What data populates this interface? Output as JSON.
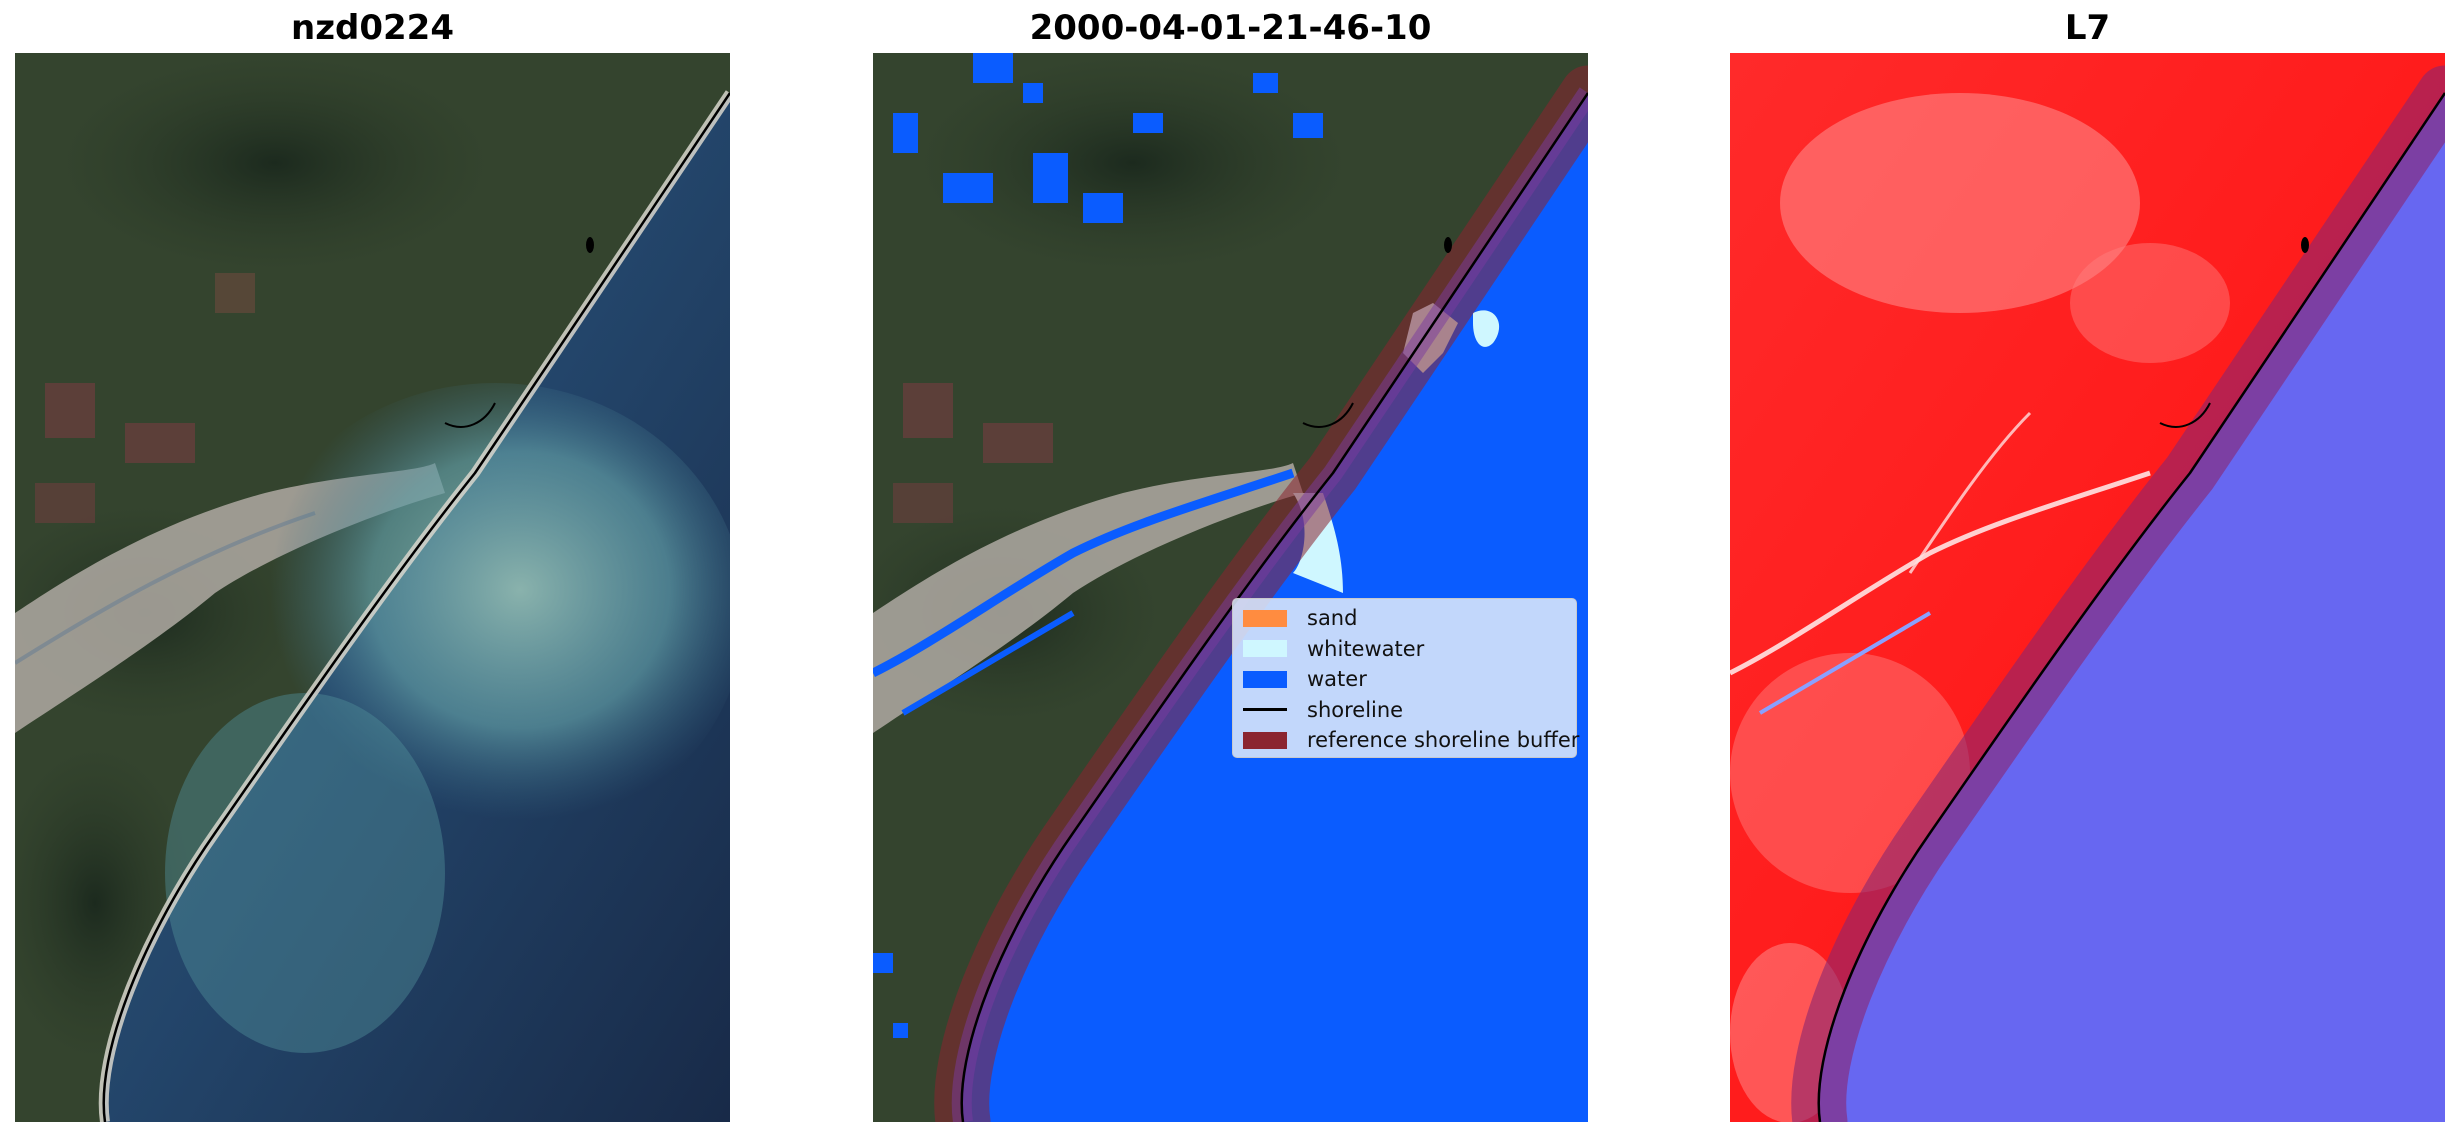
{
  "panels": [
    {
      "title": "nzd0224",
      "kind": "rgb-composite"
    },
    {
      "title": "2000-04-01-21-46-10",
      "kind": "classification"
    },
    {
      "title": "L7",
      "kind": "water-index"
    }
  ],
  "legend": {
    "placement": "center-right of middle panel",
    "items": [
      {
        "label": "sand",
        "color": "#ff8c40",
        "type": "patch"
      },
      {
        "label": "whitewater",
        "color": "#cff7ff",
        "type": "patch"
      },
      {
        "label": "water",
        "color": "#0a5cff",
        "type": "patch"
      },
      {
        "label": "shoreline",
        "color": "#000000",
        "type": "line"
      },
      {
        "label": "reference shoreline buffer",
        "color": "#8b2530",
        "type": "patch"
      }
    ]
  },
  "colors": {
    "land_dark": "#2b3a25",
    "ocean_dark": "#1c2f4d",
    "turbid_water": "#6f9ea4",
    "class_water": "#0a5cff",
    "index_land": "#ff1a1a",
    "index_water": "#6060f0",
    "buffer": "#8b2530"
  }
}
